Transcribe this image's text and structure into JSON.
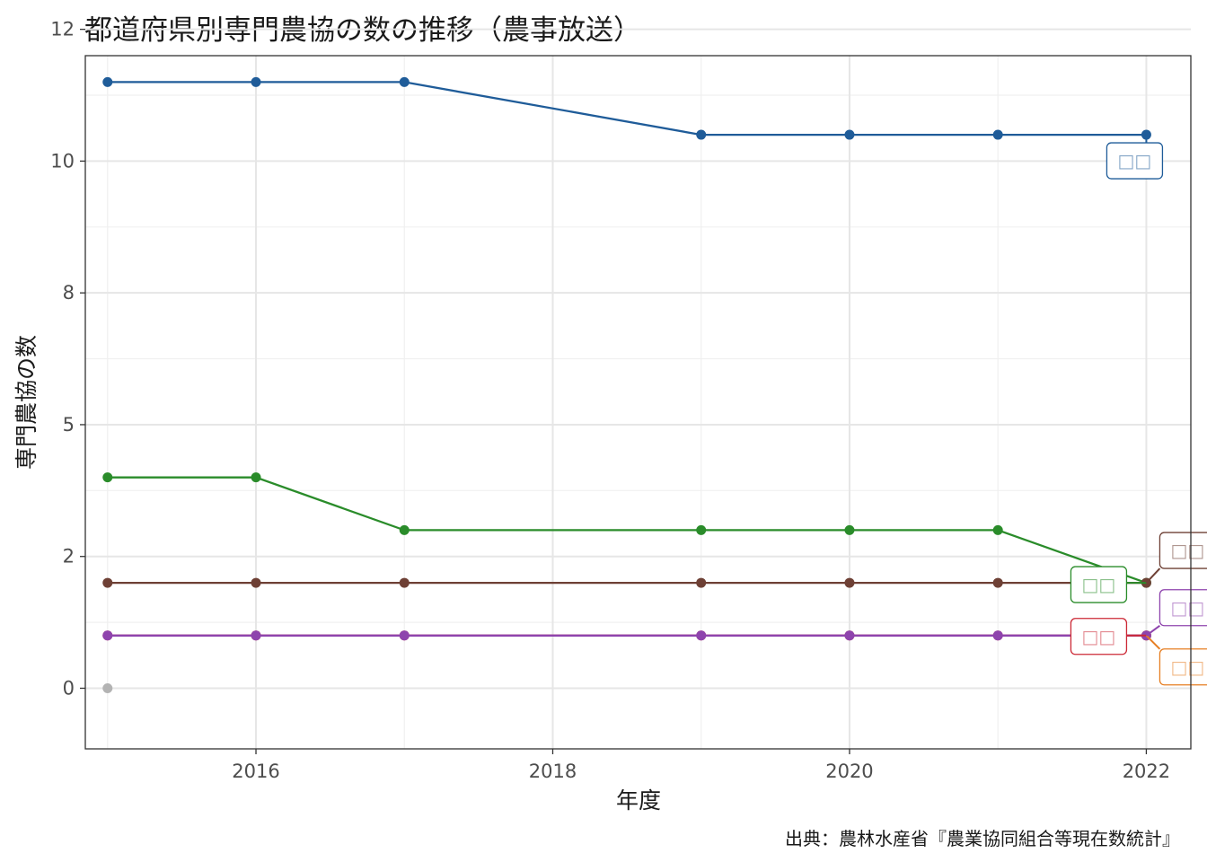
{
  "title": "都道府県別専門農協の数の推移（農事放送）",
  "caption": "出典：農林水産省『農業協同組合等現在数統計』",
  "chart_data": {
    "type": "line",
    "title": "都道府県別専門農協の数の推移（農事放送）",
    "xlabel": "年度",
    "ylabel": "専門農協の数",
    "xlim": [
      2014.85,
      2022.3
    ],
    "ylim": [
      -1.15,
      12.0
    ],
    "x_ticks": [
      2016,
      2018,
      2020,
      2022
    ],
    "y_ticks": [
      {
        "value": 0,
        "label": "0"
      },
      {
        "value": 2.5,
        "label": "2"
      },
      {
        "value": 5,
        "label": "5"
      },
      {
        "value": 7.5,
        "label": "8"
      },
      {
        "value": 10,
        "label": "10"
      },
      {
        "value": 12.5,
        "label": "12"
      }
    ],
    "grid": true,
    "legend": "none (direct labels at series ends)",
    "series": [
      {
        "name": "□□",
        "color": "#1f5c99",
        "x": [
          2015,
          2016,
          2017,
          2019,
          2020,
          2021,
          2022
        ],
        "y": [
          11.5,
          11.5,
          11.5,
          10.5,
          10.5,
          10.5,
          10.5
        ]
      },
      {
        "name": "□□",
        "color": "#2a8c2a",
        "x": [
          2015,
          2016,
          2017,
          2019,
          2020,
          2021,
          2022
        ],
        "y": [
          4.0,
          4.0,
          3.0,
          3.0,
          3.0,
          3.0,
          2.0
        ]
      },
      {
        "name": "□□",
        "color": "#6e4035",
        "x": [
          2015,
          2016,
          2017,
          2019,
          2020,
          2021,
          2022
        ],
        "y": [
          2.0,
          2.0,
          2.0,
          2.0,
          2.0,
          2.0,
          2.0
        ]
      },
      {
        "name": "□□",
        "color": "#cc2936",
        "x": [
          2015,
          2016,
          2017,
          2019,
          2020,
          2021,
          2022
        ],
        "y": [
          1.0,
          1.0,
          1.0,
          1.0,
          1.0,
          1.0,
          1.0
        ]
      },
      {
        "name": "□□",
        "color": "#e67e22",
        "x": [
          2022
        ],
        "y": [
          1.0
        ]
      },
      {
        "name": "□□",
        "color": "#8e44ad",
        "x": [
          2015,
          2016,
          2017,
          2019,
          2020,
          2021,
          2022
        ],
        "y": [
          1.0,
          1.0,
          1.0,
          1.0,
          1.0,
          1.0,
          1.0
        ]
      },
      {
        "name": "",
        "color": "#b3b3b3",
        "x": [
          2015
        ],
        "y": [
          0.0
        ]
      }
    ]
  }
}
